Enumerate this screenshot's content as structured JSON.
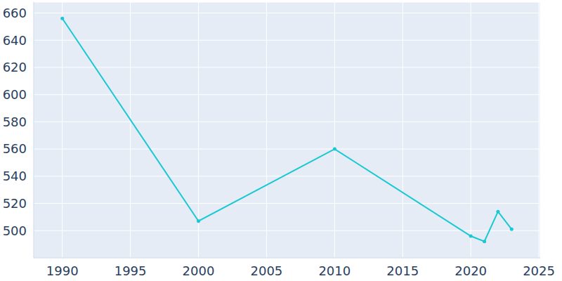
{
  "chart_data": {
    "type": "line",
    "x": [
      1990,
      2000,
      2010,
      2020,
      2021,
      2022,
      2023
    ],
    "values": [
      656,
      507,
      560,
      496,
      492,
      514,
      501
    ],
    "color": "#19c8d3",
    "marker": "circle",
    "xlim": [
      1987.9,
      2025.1
    ],
    "ylim": [
      480,
      668
    ],
    "xticks": [
      1990,
      1995,
      2000,
      2005,
      2010,
      2015,
      2020,
      2025
    ],
    "yticks": [
      500,
      520,
      540,
      560,
      580,
      600,
      620,
      640,
      660
    ],
    "grid": true
  }
}
